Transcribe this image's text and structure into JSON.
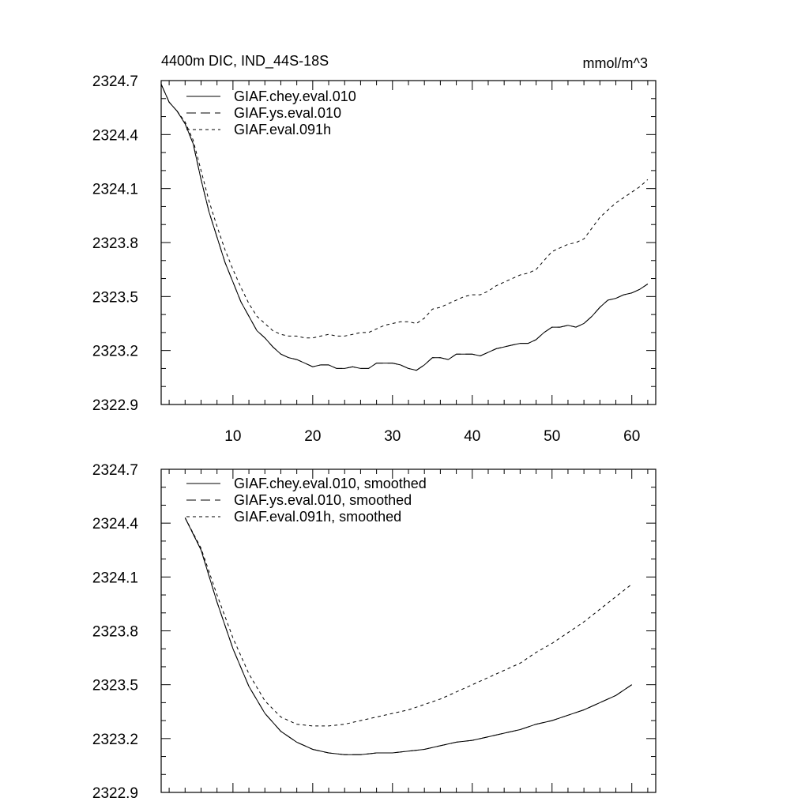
{
  "chart_data": [
    {
      "type": "line",
      "title_left": "4400m DIC, IND_44S-18S",
      "title_right": "mmol/m^3",
      "xlim": [
        1,
        63
      ],
      "ylim": [
        2322.9,
        2324.7
      ],
      "x_major_ticks": [
        10,
        20,
        30,
        40,
        50,
        60
      ],
      "x_tick_labels": [
        "10",
        "20",
        "30",
        "40",
        "50",
        "60"
      ],
      "y_major_ticks": [
        2322.9,
        2323.2,
        2323.5,
        2323.8,
        2324.1,
        2324.4,
        2324.7
      ],
      "y_tick_labels": [
        "2322.9",
        "2323.2",
        "2323.5",
        "2323.8",
        "2324.1",
        "2324.4",
        "2324.7"
      ],
      "legend": [
        {
          "label": "GIAF.chey.eval.010",
          "dash": "solid"
        },
        {
          "label": "GIAF.ys.eval.010",
          "dash": "dashed"
        },
        {
          "label": "GIAF.eval.091h",
          "dash": "dotted"
        }
      ],
      "series": [
        {
          "name": "GIAF.chey.eval.010",
          "dash": "solid",
          "x": [
            1,
            2,
            3,
            4,
            5,
            6,
            7,
            8,
            9,
            10,
            11,
            12,
            13,
            14,
            15,
            16,
            17,
            18,
            19,
            20,
            21,
            22,
            23,
            24,
            25,
            26,
            27,
            28,
            29,
            30,
            31,
            32,
            33,
            34,
            35,
            36,
            37,
            38,
            39,
            40,
            41,
            42,
            43,
            44,
            45,
            46,
            47,
            48,
            49,
            50,
            51,
            52,
            53,
            54,
            55,
            56,
            57,
            58,
            59,
            60,
            61,
            62
          ],
          "y": [
            2324.68,
            2324.58,
            2324.53,
            2324.46,
            2324.35,
            2324.15,
            2323.97,
            2323.83,
            2323.69,
            2323.58,
            2323.47,
            2323.39,
            2323.31,
            2323.27,
            2323.22,
            2323.18,
            2323.16,
            2323.15,
            2323.13,
            2323.11,
            2323.12,
            2323.12,
            2323.1,
            2323.1,
            2323.11,
            2323.1,
            2323.1,
            2323.13,
            2323.13,
            2323.13,
            2323.12,
            2323.1,
            2323.09,
            2323.12,
            2323.16,
            2323.16,
            2323.15,
            2323.18,
            2323.18,
            2323.18,
            2323.17,
            2323.19,
            2323.21,
            2323.22,
            2323.23,
            2323.24,
            2323.24,
            2323.26,
            2323.3,
            2323.33,
            2323.33,
            2323.34,
            2323.33,
            2323.35,
            2323.39,
            2323.44,
            2323.48,
            2323.49,
            2323.51,
            2323.52,
            2323.54,
            2323.57
          ]
        },
        {
          "name": "GIAF.ys.eval.010",
          "dash": "dashed",
          "x": [
            1,
            2,
            3,
            4,
            5,
            6,
            7,
            8,
            9,
            10,
            11,
            12,
            13,
            14,
            15,
            16,
            17,
            18,
            19,
            20,
            21,
            22,
            23,
            24,
            25,
            26,
            27,
            28,
            29,
            30,
            31,
            32,
            33,
            34,
            35,
            36,
            37,
            38,
            39,
            40,
            41,
            42,
            43,
            44,
            45,
            46,
            47,
            48,
            49,
            50,
            51,
            52,
            53,
            54,
            55,
            56,
            57,
            58,
            59,
            60,
            61,
            62
          ],
          "y": [
            2324.68,
            2324.58,
            2324.53,
            2324.46,
            2324.35,
            2324.15,
            2323.97,
            2323.83,
            2323.69,
            2323.58,
            2323.47,
            2323.39,
            2323.31,
            2323.27,
            2323.22,
            2323.18,
            2323.16,
            2323.15,
            2323.13,
            2323.11,
            2323.12,
            2323.12,
            2323.1,
            2323.1,
            2323.11,
            2323.1,
            2323.1,
            2323.13,
            2323.13,
            2323.13,
            2323.12,
            2323.1,
            2323.09,
            2323.12,
            2323.16,
            2323.16,
            2323.15,
            2323.18,
            2323.18,
            2323.18,
            2323.17,
            2323.19,
            2323.21,
            2323.22,
            2323.23,
            2323.24,
            2323.24,
            2323.26,
            2323.3,
            2323.33,
            2323.33,
            2323.34,
            2323.33,
            2323.35,
            2323.39,
            2323.44,
            2323.48,
            2323.49,
            2323.51,
            2323.52,
            2323.54,
            2323.57
          ]
        },
        {
          "name": "GIAF.eval.091h",
          "dash": "dotted",
          "x": [
            1,
            2,
            3,
            4,
            5,
            6,
            7,
            8,
            9,
            10,
            11,
            12,
            13,
            14,
            15,
            16,
            17,
            18,
            19,
            20,
            21,
            22,
            23,
            24,
            25,
            26,
            27,
            28,
            29,
            30,
            31,
            32,
            33,
            34,
            35,
            36,
            37,
            38,
            39,
            40,
            41,
            42,
            43,
            44,
            45,
            46,
            47,
            48,
            49,
            50,
            51,
            52,
            53,
            54,
            55,
            56,
            57,
            58,
            59,
            60,
            61,
            62
          ],
          "y": [
            2324.68,
            2324.58,
            2324.53,
            2324.47,
            2324.37,
            2324.2,
            2324.03,
            2323.89,
            2323.76,
            2323.65,
            2323.55,
            2323.46,
            2323.39,
            2323.35,
            2323.31,
            2323.29,
            2323.28,
            2323.28,
            2323.27,
            2323.27,
            2323.28,
            2323.29,
            2323.28,
            2323.28,
            2323.29,
            2323.3,
            2323.3,
            2323.32,
            2323.34,
            2323.35,
            2323.36,
            2323.36,
            2323.35,
            2323.38,
            2323.43,
            2323.44,
            2323.46,
            2323.48,
            2323.5,
            2323.51,
            2323.51,
            2323.53,
            2323.56,
            2323.58,
            2323.6,
            2323.62,
            2323.63,
            2323.65,
            2323.7,
            2323.75,
            2323.77,
            2323.79,
            2323.8,
            2323.82,
            2323.88,
            2323.94,
            2323.98,
            2324.02,
            2324.05,
            2324.08,
            2324.11,
            2324.15
          ]
        }
      ]
    },
    {
      "type": "line",
      "xlim": [
        1,
        63
      ],
      "ylim": [
        2322.9,
        2324.7
      ],
      "x_major_ticks": [
        10,
        20,
        30,
        40,
        50,
        60
      ],
      "y_major_ticks": [
        2322.9,
        2323.2,
        2323.5,
        2323.8,
        2324.1,
        2324.4,
        2324.7
      ],
      "y_tick_labels": [
        "2322.9",
        "2323.2",
        "2323.5",
        "2323.8",
        "2324.1",
        "2324.4",
        "2324.7"
      ],
      "legend": [
        {
          "label": "GIAF.chey.eval.010, smoothed",
          "dash": "solid"
        },
        {
          "label": "GIAF.ys.eval.010, smoothed",
          "dash": "dashed"
        },
        {
          "label": "GIAF.eval.091h, smoothed",
          "dash": "dotted"
        }
      ],
      "series": [
        {
          "name": "GIAF.chey.eval.010, smoothed",
          "dash": "solid",
          "x": [
            4,
            6,
            8,
            10,
            12,
            14,
            16,
            18,
            20,
            22,
            24,
            26,
            28,
            30,
            32,
            34,
            36,
            38,
            40,
            42,
            44,
            46,
            48,
            50,
            52,
            54,
            56,
            58,
            60
          ],
          "y": [
            2324.43,
            2324.25,
            2323.96,
            2323.7,
            2323.49,
            2323.34,
            2323.24,
            2323.18,
            2323.14,
            2323.12,
            2323.11,
            2323.11,
            2323.12,
            2323.12,
            2323.13,
            2323.14,
            2323.16,
            2323.18,
            2323.19,
            2323.21,
            2323.23,
            2323.25,
            2323.28,
            2323.3,
            2323.33,
            2323.36,
            2323.4,
            2323.44,
            2323.5
          ]
        },
        {
          "name": "GIAF.ys.eval.010, smoothed",
          "dash": "dashed",
          "x": [
            4,
            6,
            8,
            10,
            12,
            14,
            16,
            18,
            20,
            22,
            24,
            26,
            28,
            30,
            32,
            34,
            36,
            38,
            40,
            42,
            44,
            46,
            48,
            50,
            52,
            54,
            56,
            58,
            60
          ],
          "y": [
            2324.43,
            2324.25,
            2323.96,
            2323.7,
            2323.49,
            2323.34,
            2323.24,
            2323.18,
            2323.14,
            2323.12,
            2323.11,
            2323.11,
            2323.12,
            2323.12,
            2323.13,
            2323.14,
            2323.16,
            2323.18,
            2323.19,
            2323.21,
            2323.23,
            2323.25,
            2323.28,
            2323.3,
            2323.33,
            2323.36,
            2323.4,
            2323.44,
            2323.5
          ]
        },
        {
          "name": "GIAF.eval.091h, smoothed",
          "dash": "dotted",
          "x": [
            4,
            6,
            8,
            10,
            12,
            14,
            16,
            18,
            20,
            22,
            24,
            26,
            28,
            30,
            32,
            34,
            36,
            38,
            40,
            42,
            44,
            46,
            48,
            50,
            52,
            54,
            56,
            58,
            60
          ],
          "y": [
            2324.43,
            2324.26,
            2324.0,
            2323.76,
            2323.56,
            2323.41,
            2323.32,
            2323.28,
            2323.27,
            2323.27,
            2323.28,
            2323.3,
            2323.32,
            2323.34,
            2323.36,
            2323.39,
            2323.42,
            2323.46,
            2323.5,
            2323.54,
            2323.58,
            2323.62,
            2323.68,
            2323.73,
            2323.79,
            2323.85,
            2323.92,
            2323.99,
            2324.06
          ]
        }
      ]
    }
  ]
}
